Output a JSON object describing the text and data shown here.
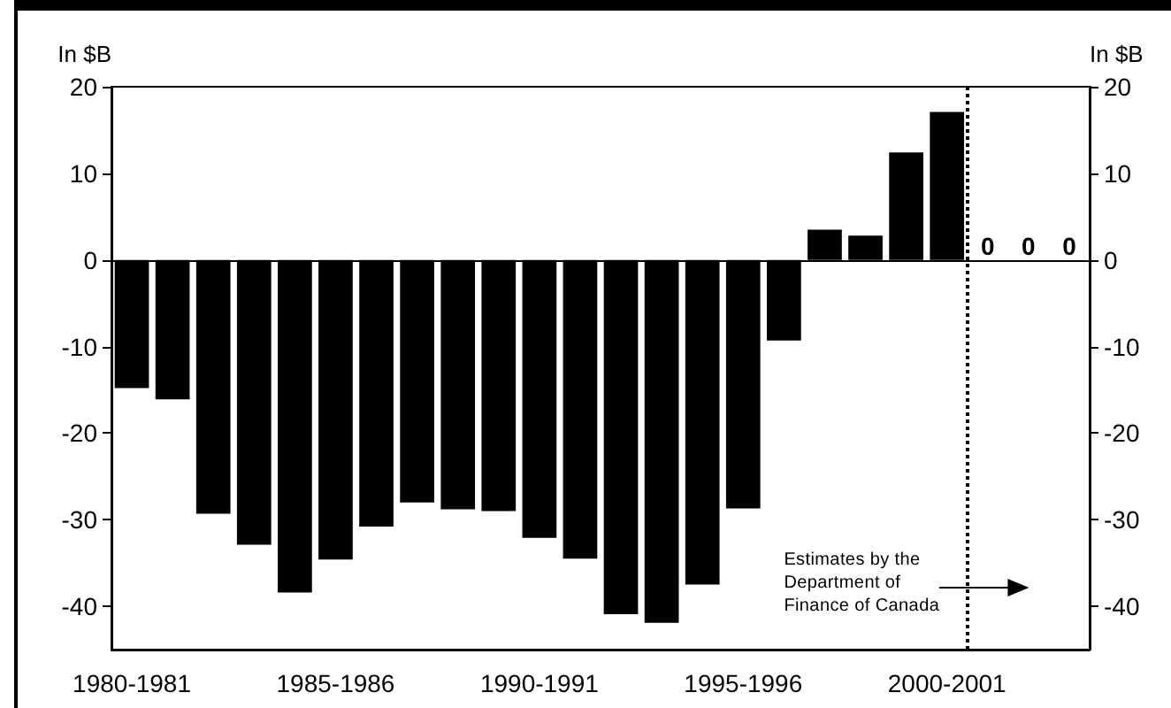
{
  "chart_data": {
    "type": "bar",
    "categories": [
      "1980-1981",
      null,
      null,
      null,
      null,
      "1985-1986",
      null,
      null,
      null,
      null,
      "1990-1991",
      null,
      null,
      null,
      null,
      "1995-1996",
      null,
      null,
      null,
      null,
      "2000-2001",
      null,
      null,
      null
    ],
    "values": [
      -14.8,
      -16.1,
      -29.3,
      -32.9,
      -38.4,
      -34.6,
      -30.8,
      -28.0,
      -28.8,
      -29.0,
      -32.1,
      -34.5,
      -40.9,
      -41.9,
      -37.5,
      -28.7,
      -9.3,
      3.5,
      2.8,
      12.4,
      17.1,
      0,
      0,
      0
    ],
    "value_labels": [
      null,
      null,
      null,
      null,
      null,
      null,
      null,
      null,
      null,
      null,
      null,
      null,
      null,
      null,
      null,
      null,
      null,
      null,
      null,
      null,
      null,
      "0",
      "0",
      "0"
    ],
    "color": "#000000",
    "ylabel": "In $B",
    "y2label": "In $B",
    "ylim": [
      -45,
      20
    ],
    "yticks": [
      -40,
      -30,
      -20,
      -10,
      0,
      10,
      20
    ],
    "y2lim": [
      -45,
      20
    ],
    "y2ticks": [
      -40,
      -30,
      -20,
      -10,
      0,
      10,
      20
    ],
    "annotations": [
      {
        "text": "Estimates by the\nDepartment of\nFinance of Canada"
      }
    ],
    "tick_labels": [
      "x",
      "y",
      "y2"
    ]
  }
}
